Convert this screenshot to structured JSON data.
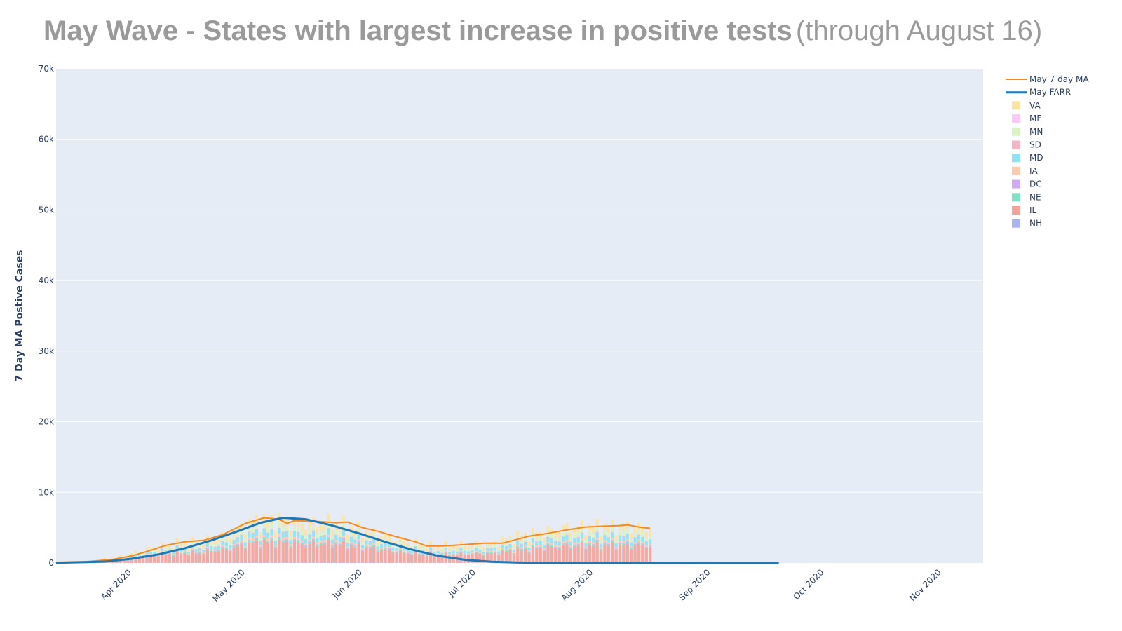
{
  "chart_data": {
    "type": "bar",
    "barmode": "stack",
    "title": "May Wave - States with largest increase in positive tests",
    "subtitle": "(through August 16)",
    "ylabel": "7 Day MA Postive Cases",
    "xlabel": "",
    "ylim": [
      0,
      70000
    ],
    "xlim": [
      "2020-03-12",
      "2020-11-12"
    ],
    "yticks": [
      0,
      10000,
      20000,
      30000,
      40000,
      50000,
      60000,
      70000
    ],
    "ytick_labels": [
      "0",
      "10k",
      "20k",
      "30k",
      "40k",
      "50k",
      "60k",
      "70k"
    ],
    "xticks": [
      "2020-04-01",
      "2020-05-01",
      "2020-06-01",
      "2020-07-01",
      "2020-08-01",
      "2020-09-01",
      "2020-10-01",
      "2020-11-01"
    ],
    "xtick_labels": [
      "Apr 2020",
      "May 2020",
      "Jun 2020",
      "Jul 2020",
      "Aug 2020",
      "Sep 2020",
      "Oct 2020",
      "Nov 2020"
    ],
    "grid": true,
    "legend_position": "top-right",
    "plot_background": "#e5ecf6",
    "bar_dates_start": "2020-03-12",
    "bar_dates_end": "2020-08-16",
    "bar_totals": {
      "dates": [
        "2020-03-15",
        "2020-03-22",
        "2020-03-29",
        "2020-04-05",
        "2020-04-12",
        "2020-04-19",
        "2020-04-26",
        "2020-05-03",
        "2020-05-10",
        "2020-05-17",
        "2020-05-24",
        "2020-05-31",
        "2020-06-07",
        "2020-06-14",
        "2020-06-21",
        "2020-06-28",
        "2020-07-05",
        "2020-07-12",
        "2020-07-19",
        "2020-07-26",
        "2020-08-02",
        "2020-08-09",
        "2020-08-16"
      ],
      "values": [
        100,
        300,
        900,
        2000,
        2800,
        3000,
        4000,
        6000,
        6200,
        5600,
        5800,
        4800,
        3800,
        2800,
        2400,
        2600,
        2800,
        3800,
        4500,
        5100,
        5200,
        5300,
        5000
      ]
    },
    "state_shares": {
      "IL": 0.46,
      "MD": 0.12,
      "MN": 0.12,
      "VA": 0.16,
      "IA": 0.05,
      "NE": 0.03,
      "DC": 0.02,
      "SD": 0.015,
      "NH": 0.01,
      "ME": 0.01
    },
    "series": [
      {
        "name": "May 7 day MA",
        "type": "line",
        "color": "#f5891e",
        "x": [
          "2020-03-12",
          "2020-03-20",
          "2020-03-27",
          "2020-04-01",
          "2020-04-06",
          "2020-04-10",
          "2020-04-15",
          "2020-04-20",
          "2020-04-25",
          "2020-05-01",
          "2020-05-06",
          "2020-05-10",
          "2020-05-12",
          "2020-05-14",
          "2020-05-20",
          "2020-05-25",
          "2020-05-28",
          "2020-06-01",
          "2020-06-05",
          "2020-06-10",
          "2020-06-15",
          "2020-06-18",
          "2020-06-22",
          "2020-06-28",
          "2020-07-03",
          "2020-07-08",
          "2020-07-15",
          "2020-07-20",
          "2020-07-25",
          "2020-07-30",
          "2020-08-03",
          "2020-08-08",
          "2020-08-10",
          "2020-08-13",
          "2020-08-16"
        ],
        "y": [
          100,
          200,
          500,
          1000,
          1800,
          2500,
          3000,
          3200,
          4000,
          5600,
          6400,
          6200,
          5600,
          6000,
          5900,
          5700,
          5800,
          5000,
          4500,
          3700,
          3000,
          2400,
          2400,
          2600,
          2800,
          2800,
          3800,
          4200,
          4700,
          5100,
          5200,
          5300,
          5400,
          5100,
          4900
        ]
      },
      {
        "name": "May FARR",
        "type": "line",
        "color": "#1f77b4",
        "peak_date": "2020-05-11",
        "peak": 6400,
        "end_date": "2020-09-19",
        "x": [
          "2020-03-12",
          "2020-03-25",
          "2020-04-01",
          "2020-04-08",
          "2020-04-15",
          "2020-04-22",
          "2020-04-29",
          "2020-05-05",
          "2020-05-11",
          "2020-05-17",
          "2020-05-24",
          "2020-05-31",
          "2020-06-07",
          "2020-06-14",
          "2020-06-21",
          "2020-06-28",
          "2020-07-05",
          "2020-07-12",
          "2020-07-19",
          "2020-08-01",
          "2020-09-19"
        ],
        "y": [
          20,
          200,
          600,
          1200,
          2100,
          3200,
          4500,
          5700,
          6400,
          6200,
          5300,
          4200,
          3000,
          1900,
          1000,
          450,
          180,
          60,
          20,
          5,
          0
        ]
      },
      {
        "name": "VA",
        "type": "bar",
        "color": "#fde3a1"
      },
      {
        "name": "ME",
        "type": "bar",
        "color": "#fbc9f5"
      },
      {
        "name": "MN",
        "type": "bar",
        "color": "#d9f3c4"
      },
      {
        "name": "SD",
        "type": "bar",
        "color": "#f9b3c7"
      },
      {
        "name": "MD",
        "type": "bar",
        "color": "#8ee2f4"
      },
      {
        "name": "IA",
        "type": "bar",
        "color": "#fccbab"
      },
      {
        "name": "DC",
        "type": "bar",
        "color": "#d0aaf7"
      },
      {
        "name": "NE",
        "type": "bar",
        "color": "#7ee3c6"
      },
      {
        "name": "IL",
        "type": "bar",
        "color": "#f5a39a"
      },
      {
        "name": "NH",
        "type": "bar",
        "color": "#aab4f5"
      }
    ]
  }
}
